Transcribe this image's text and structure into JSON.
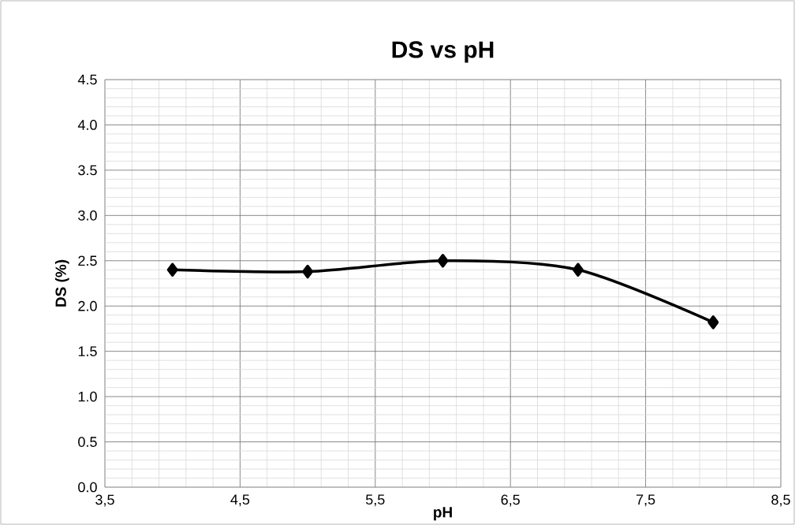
{
  "chart_data": {
    "type": "line",
    "title": "DS vs pH",
    "xlabel": "pH",
    "ylabel": "DS (%)",
    "x": [
      4,
      5,
      6,
      7,
      8
    ],
    "series": [
      {
        "color": "#000000",
        "values": [
          2.4,
          2.38,
          2.5,
          2.4,
          1.82
        ]
      }
    ],
    "xlim": [
      3.5,
      8.5
    ],
    "xticks": [
      {
        "value": 3.5,
        "label": "3,5"
      },
      {
        "value": 4.5,
        "label": "4,5"
      },
      {
        "value": 5.5,
        "label": "5,5"
      },
      {
        "value": 6.5,
        "label": "6,5"
      },
      {
        "value": 7.5,
        "label": "7,5"
      },
      {
        "value": 8.5,
        "label": "8,5"
      }
    ],
    "ylim": [
      0,
      4.5
    ],
    "yticks": [
      {
        "value": 0,
        "label": "0.0"
      },
      {
        "value": 0.5,
        "label": "0.5"
      },
      {
        "value": 1,
        "label": "1.0"
      },
      {
        "value": 1.5,
        "label": "1.5"
      },
      {
        "value": 2,
        "label": "2.0"
      },
      {
        "value": 2.5,
        "label": "2.5"
      },
      {
        "value": 3,
        "label": "3.0"
      },
      {
        "value": 3.5,
        "label": "3.5"
      },
      {
        "value": 4,
        "label": "4.0"
      },
      {
        "value": 4.5,
        "label": "4.5"
      }
    ],
    "grid": true,
    "marker": "diamond",
    "line_style": "solid"
  }
}
